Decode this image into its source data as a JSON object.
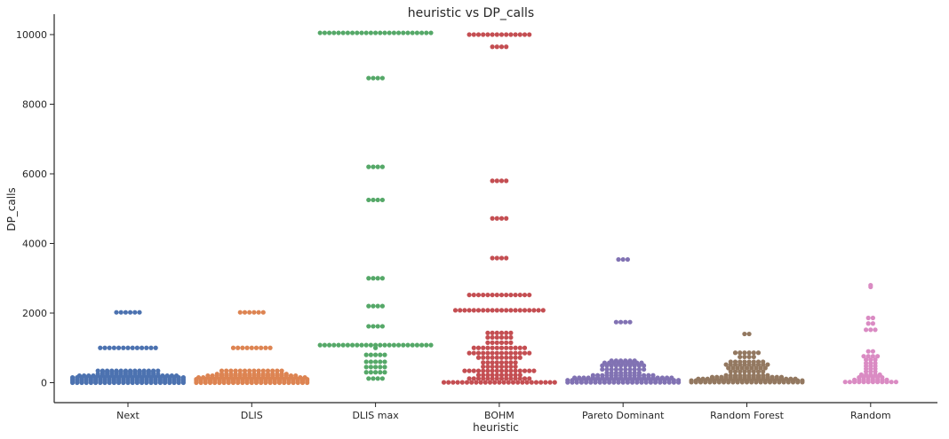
{
  "chart_data": {
    "type": "scatter",
    "subtype": "swarm",
    "title": "heuristic vs DP_calls",
    "xlabel": "heuristic",
    "ylabel": "DP_calls",
    "ylim": [
      -600,
      10600
    ],
    "yticks": [
      0,
      2000,
      4000,
      6000,
      8000,
      10000
    ],
    "grid": false,
    "legend": "none",
    "categories": [
      "Next",
      "DLIS",
      "DLIS max",
      "BOHM",
      "Pareto Dominant",
      "Random Forest",
      "Random"
    ],
    "series": [
      {
        "color": "#4c72b0",
        "points": [
          [
            0,
            40
          ],
          [
            50,
            38
          ],
          [
            100,
            30
          ],
          [
            150,
            26
          ],
          [
            200,
            22
          ],
          [
            250,
            14
          ],
          [
            300,
            12
          ],
          [
            340,
            14
          ],
          [
            1000,
            13
          ],
          [
            2020,
            6
          ]
        ]
      },
      {
        "color": "#dd8452",
        "points": [
          [
            0,
            36
          ],
          [
            50,
            32
          ],
          [
            100,
            28
          ],
          [
            150,
            24
          ],
          [
            200,
            20
          ],
          [
            250,
            16
          ],
          [
            340,
            14
          ],
          [
            1000,
            9
          ],
          [
            2020,
            6
          ]
        ]
      },
      {
        "color": "#55a868",
        "points": [
          [
            120,
            4
          ],
          [
            300,
            5
          ],
          [
            450,
            5
          ],
          [
            600,
            5
          ],
          [
            800,
            5
          ],
          [
            1000,
            1
          ],
          [
            1080,
            40
          ],
          [
            1620,
            4
          ],
          [
            2200,
            4
          ],
          [
            3000,
            4
          ],
          [
            5250,
            4
          ],
          [
            6200,
            4
          ],
          [
            8750,
            4
          ],
          [
            10050,
            40
          ]
        ]
      },
      {
        "color": "#c44e52",
        "points": [
          [
            10,
            40
          ],
          [
            120,
            14
          ],
          [
            220,
            10
          ],
          [
            340,
            16
          ],
          [
            460,
            8
          ],
          [
            580,
            8
          ],
          [
            720,
            10
          ],
          [
            850,
            14
          ],
          [
            1000,
            12
          ],
          [
            1150,
            6
          ],
          [
            1300,
            6
          ],
          [
            1430,
            6
          ],
          [
            2080,
            20
          ],
          [
            2520,
            14
          ],
          [
            3580,
            4
          ],
          [
            4720,
            4
          ],
          [
            5800,
            4
          ],
          [
            9650,
            4
          ],
          [
            10000,
            14
          ]
        ]
      },
      {
        "color": "#8172b3",
        "points": [
          [
            10,
            40
          ],
          [
            70,
            30
          ],
          [
            140,
            22
          ],
          [
            210,
            14
          ],
          [
            280,
            8
          ],
          [
            380,
            10
          ],
          [
            490,
            10
          ],
          [
            570,
            9
          ],
          [
            630,
            6
          ],
          [
            1740,
            4
          ],
          [
            3540,
            3
          ]
        ]
      },
      {
        "color": "#937860",
        "points": [
          [
            15,
            36
          ],
          [
            60,
            30
          ],
          [
            110,
            22
          ],
          [
            160,
            16
          ],
          [
            210,
            10
          ],
          [
            320,
            8
          ],
          [
            420,
            9
          ],
          [
            520,
            10
          ],
          [
            600,
            8
          ],
          [
            740,
            4
          ],
          [
            860,
            6
          ],
          [
            1400,
            2
          ]
        ]
      },
      {
        "color": "#da8bc3",
        "points": [
          [
            20,
            12
          ],
          [
            80,
            8
          ],
          [
            150,
            6
          ],
          [
            230,
            5
          ],
          [
            320,
            3
          ],
          [
            400,
            3
          ],
          [
            480,
            3
          ],
          [
            560,
            3
          ],
          [
            660,
            3
          ],
          [
            760,
            4
          ],
          [
            900,
            2
          ],
          [
            1520,
            3
          ],
          [
            1700,
            2
          ],
          [
            1860,
            2
          ],
          [
            2750,
            1
          ],
          [
            2800,
            1
          ]
        ]
      }
    ]
  }
}
